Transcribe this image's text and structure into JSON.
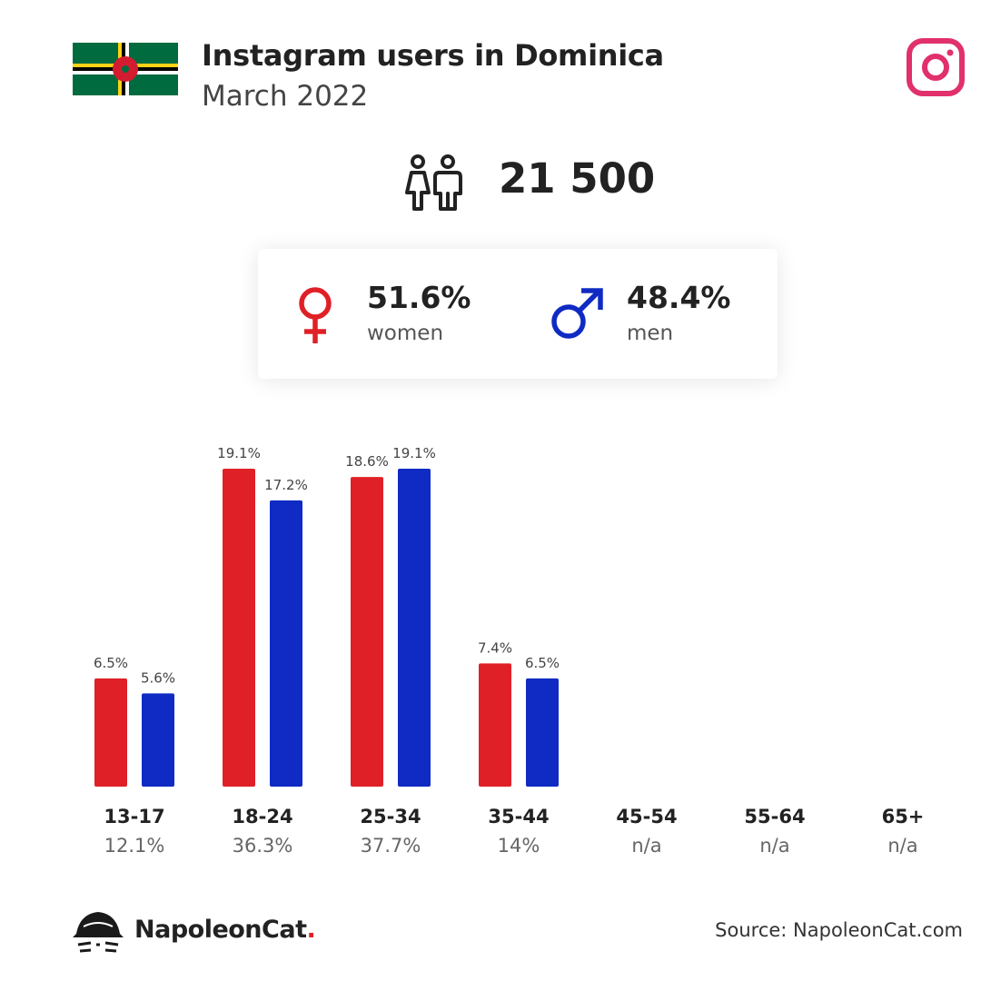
{
  "header": {
    "title": "Instagram users in Dominica",
    "subtitle": "March 2022"
  },
  "total": {
    "value": "21 500"
  },
  "gender": {
    "women": {
      "pct": "51.6%",
      "label": "women"
    },
    "men": {
      "pct": "48.4%",
      "label": "men"
    }
  },
  "colors": {
    "women": "#e02027",
    "men": "#0f2bc3",
    "instagram": "#e1306c"
  },
  "chart_data": {
    "type": "bar",
    "categories": [
      "13-17",
      "18-24",
      "25-34",
      "35-44",
      "45-54",
      "55-64",
      "65+"
    ],
    "category_totals": [
      "12.1%",
      "36.3%",
      "37.7%",
      "14%",
      "n/a",
      "n/a",
      "n/a"
    ],
    "series": [
      {
        "name": "women",
        "values": [
          6.5,
          19.1,
          18.6,
          7.4,
          null,
          null,
          null
        ]
      },
      {
        "name": "men",
        "values": [
          5.6,
          17.2,
          19.1,
          6.5,
          null,
          null,
          null
        ]
      }
    ],
    "unit": "%",
    "ylim": [
      0,
      19.1
    ]
  },
  "footer": {
    "brand_name": "NapoleonCat",
    "brand_dot": ".",
    "source": "Source: NapoleonCat.com"
  }
}
